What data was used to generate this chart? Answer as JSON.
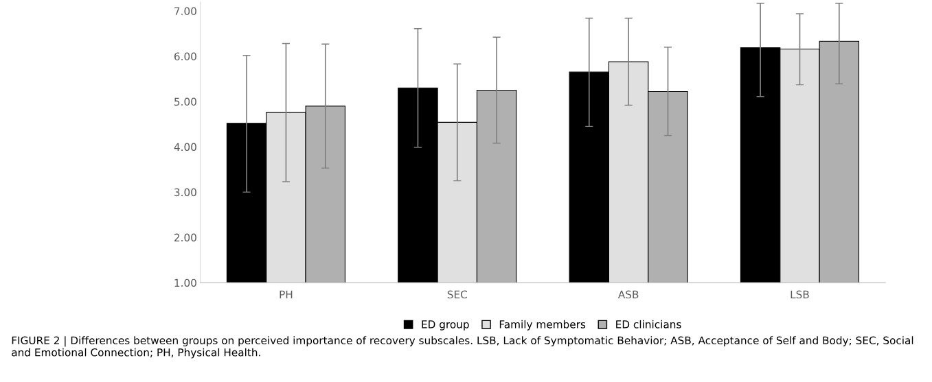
{
  "chart_data": {
    "type": "bar",
    "categories": [
      "PH",
      "SEC",
      "ASB",
      "LSB"
    ],
    "series": [
      {
        "name": "ED group",
        "color": "#000000",
        "values": [
          4.52,
          5.3,
          5.65,
          6.19
        ],
        "errors": [
          [
            3.0,
            6.02
          ],
          [
            3.99,
            6.61
          ],
          [
            4.45,
            6.84
          ],
          [
            5.11,
            7.17
          ]
        ]
      },
      {
        "name": "Family members",
        "color": "#e0e0e0",
        "values": [
          4.76,
          4.54,
          5.88,
          6.16
        ],
        "errors": [
          [
            3.23,
            6.28
          ],
          [
            3.25,
            5.83
          ],
          [
            4.92,
            6.84
          ],
          [
            5.37,
            6.94
          ]
        ]
      },
      {
        "name": "ED clinicians",
        "color": "#b0b0b0",
        "values": [
          4.9,
          5.25,
          5.22,
          6.33
        ],
        "errors": [
          [
            3.53,
            6.27
          ],
          [
            4.08,
            6.42
          ],
          [
            4.25,
            6.2
          ],
          [
            5.39,
            7.17
          ]
        ]
      }
    ],
    "ylim": [
      1,
      7.2
    ],
    "yticks": [
      {
        "value": 1,
        "label": "1.00"
      },
      {
        "value": 2,
        "label": "2.00"
      },
      {
        "value": 3,
        "label": "3.00"
      },
      {
        "value": 4,
        "label": "4.00"
      },
      {
        "value": 5,
        "label": "5.00"
      },
      {
        "value": 6,
        "label": "6.00"
      },
      {
        "value": 7,
        "label": "7.00"
      }
    ],
    "grid": false,
    "legend": "bottom",
    "annotations": [
      "FIGURE 2 | Differences between groups on perceived importance of recovery subscales. LSB, Lack of Symptomatic Behavior; ASB, Acceptance of Self and Body; SEC, Social and Emotional Connection; PH, Physical Health."
    ]
  }
}
